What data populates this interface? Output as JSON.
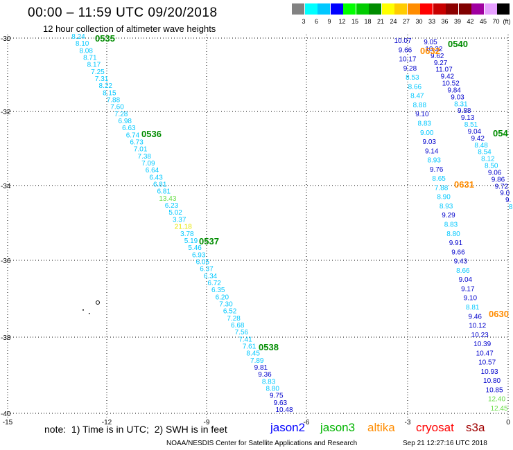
{
  "header": {
    "title": "00:00 – 11:59 UTC 09/20/2018",
    "subtitle": "12 hour collection of altimeter wave heights"
  },
  "colorbar": {
    "unit": "(ft)",
    "swatches": [
      {
        "label": "3",
        "color": "#828282"
      },
      {
        "label": "6",
        "color": "#00ffff"
      },
      {
        "label": "9",
        "color": "#00c8ff"
      },
      {
        "label": "12",
        "color": "#0000ff"
      },
      {
        "label": "15",
        "color": "#00ff00"
      },
      {
        "label": "18",
        "color": "#00cc00"
      },
      {
        "label": "21",
        "color": "#008c00"
      },
      {
        "label": "24",
        "color": "#ffff00"
      },
      {
        "label": "27",
        "color": "#ffcc00"
      },
      {
        "label": "30",
        "color": "#ff8c00"
      },
      {
        "label": "33",
        "color": "#ff0000"
      },
      {
        "label": "36",
        "color": "#c80000"
      },
      {
        "label": "39",
        "color": "#8c0000"
      },
      {
        "label": "42",
        "color": "#800000"
      },
      {
        "label": "45",
        "color": "#a000a0"
      },
      {
        "label": "70",
        "color": "#e6a0ff"
      },
      {
        "label": "",
        "color": "#000000"
      }
    ]
  },
  "map": {
    "xticks": [
      "-15",
      "-12",
      "-9",
      "-6",
      "-3",
      "0"
    ],
    "yticks": [
      "-30",
      "-32",
      "-34",
      "-36",
      "-38",
      "-40"
    ],
    "tracks": [
      {
        "satellite": "jason3",
        "points": [
          {
            "v": "8.24",
            "c": "#00c8ff"
          },
          {
            "v": "8.10",
            "c": "#00c8ff"
          },
          {
            "v": "8.08",
            "c": "#00c8ff"
          },
          {
            "v": "8.71",
            "c": "#00c8ff"
          },
          {
            "v": "8.17",
            "c": "#00c8ff"
          },
          {
            "v": "7.25",
            "c": "#00c8ff"
          },
          {
            "v": "7.31",
            "c": "#00c8ff"
          },
          {
            "v": "8.22",
            "c": "#00c8ff"
          },
          {
            "v": "8.15",
            "c": "#00c8ff"
          },
          {
            "v": "7.88",
            "c": "#00c8ff"
          },
          {
            "v": "7.60",
            "c": "#00c8ff"
          },
          {
            "v": "7.28",
            "c": "#00c8ff"
          },
          {
            "v": "6.98",
            "c": "#00c8ff"
          },
          {
            "v": "6.63",
            "c": "#00c8ff"
          },
          {
            "v": "6.74",
            "c": "#00c8ff"
          },
          {
            "v": "6.73",
            "c": "#00c8ff"
          },
          {
            "v": "7.01",
            "c": "#00c8ff"
          },
          {
            "v": "7.38",
            "c": "#00c8ff"
          },
          {
            "v": "7.09",
            "c": "#00c8ff"
          },
          {
            "v": "6.64",
            "c": "#00c8ff"
          },
          {
            "v": "6.43",
            "c": "#00c8ff"
          },
          {
            "v": "6.81",
            "c": "#00c8ff"
          },
          {
            "v": "6.81",
            "c": "#00c8ff"
          },
          {
            "v": "13.43",
            "c": "#66dd44"
          },
          {
            "v": "6.23",
            "c": "#00c8ff"
          },
          {
            "v": "5.02",
            "c": "#00c8ff"
          },
          {
            "v": "3.37",
            "c": "#00c8ff"
          },
          {
            "v": "21.18",
            "c": "#e6e600"
          },
          {
            "v": "3.78",
            "c": "#00c8ff"
          },
          {
            "v": "5.19",
            "c": "#00c8ff"
          },
          {
            "v": "5.46",
            "c": "#00c8ff"
          },
          {
            "v": "6.93",
            "c": "#00c8ff"
          },
          {
            "v": "6.05",
            "c": "#00c8ff"
          },
          {
            "v": "6.37",
            "c": "#00c8ff"
          },
          {
            "v": "6.34",
            "c": "#00c8ff"
          },
          {
            "v": "6.72",
            "c": "#00c8ff"
          },
          {
            "v": "6.35",
            "c": "#00c8ff"
          },
          {
            "v": "6.20",
            "c": "#00c8ff"
          },
          {
            "v": "7.30",
            "c": "#00c8ff"
          },
          {
            "v": "6.52",
            "c": "#00c8ff"
          },
          {
            "v": "7.28",
            "c": "#00c8ff"
          },
          {
            "v": "6.68",
            "c": "#00c8ff"
          },
          {
            "v": "7.56",
            "c": "#00c8ff"
          },
          {
            "v": "7.41",
            "c": "#00c8ff"
          },
          {
            "v": "7.61",
            "c": "#00c8ff"
          },
          {
            "v": "8.45",
            "c": "#00c8ff"
          },
          {
            "v": "7.89",
            "c": "#00c8ff"
          },
          {
            "v": "9.81",
            "c": "#0000cc"
          },
          {
            "v": "9.36",
            "c": "#0000cc"
          },
          {
            "v": "8.83",
            "c": "#00c8ff"
          },
          {
            "v": "8.80",
            "c": "#00c8ff"
          },
          {
            "v": "9.75",
            "c": "#0000cc"
          },
          {
            "v": "9.63",
            "c": "#0000cc"
          },
          {
            "v": "10.48",
            "c": "#0000cc"
          }
        ]
      },
      {
        "satellite": "jason2",
        "points": [
          {
            "v": "10.07",
            "c": "#0000cc"
          },
          {
            "v": "9.66",
            "c": "#0000cc"
          },
          {
            "v": "10.17",
            "c": "#0000cc"
          },
          {
            "v": "9.28",
            "c": "#0000cc"
          },
          {
            "v": "8.53",
            "c": "#00c8ff"
          },
          {
            "v": "8.66",
            "c": "#00c8ff"
          },
          {
            "v": "8.47",
            "c": "#00c8ff"
          },
          {
            "v": "8.88",
            "c": "#00c8ff"
          },
          {
            "v": "9.10",
            "c": "#0000cc"
          },
          {
            "v": "8.83",
            "c": "#00c8ff"
          },
          {
            "v": "9.00",
            "c": "#00c8ff"
          },
          {
            "v": "9.03",
            "c": "#0000cc"
          },
          {
            "v": "9.14",
            "c": "#0000cc"
          },
          {
            "v": "8.93",
            "c": "#00c8ff"
          },
          {
            "v": "9.76",
            "c": "#0000cc"
          },
          {
            "v": "8.65",
            "c": "#00c8ff"
          },
          {
            "v": "7.88",
            "c": "#00c8ff"
          },
          {
            "v": "8.90",
            "c": "#00c8ff"
          },
          {
            "v": "8.93",
            "c": "#00c8ff"
          },
          {
            "v": "9.29",
            "c": "#0000cc"
          },
          {
            "v": "8.83",
            "c": "#00c8ff"
          },
          {
            "v": "8.80",
            "c": "#00c8ff"
          },
          {
            "v": "9.91",
            "c": "#0000cc"
          },
          {
            "v": "9.66",
            "c": "#0000cc"
          },
          {
            "v": "9.43",
            "c": "#0000cc"
          },
          {
            "v": "8.66",
            "c": "#00c8ff"
          },
          {
            "v": "9.04",
            "c": "#0000cc"
          },
          {
            "v": "9.17",
            "c": "#0000cc"
          },
          {
            "v": "9.10",
            "c": "#0000cc"
          },
          {
            "v": "8.81",
            "c": "#00c8ff"
          },
          {
            "v": "9.46",
            "c": "#0000cc"
          },
          {
            "v": "10.12",
            "c": "#0000cc"
          },
          {
            "v": "10.23",
            "c": "#0000cc"
          },
          {
            "v": "10.39",
            "c": "#0000cc"
          },
          {
            "v": "10.47",
            "c": "#0000cc"
          },
          {
            "v": "10.57",
            "c": "#0000cc"
          },
          {
            "v": "10.93",
            "c": "#0000cc"
          },
          {
            "v": "10.80",
            "c": "#0000cc"
          },
          {
            "v": "10.85",
            "c": "#0000cc"
          },
          {
            "v": "12.40",
            "c": "#66dd44"
          },
          {
            "v": "12.45",
            "c": "#66dd44"
          }
        ]
      },
      {
        "satellite": "jason3",
        "points": [
          {
            "v": "9.05",
            "c": "#0000cc"
          },
          {
            "v": "10.32",
            "c": "#0000cc"
          },
          {
            "v": "9.62",
            "c": "#0000cc"
          },
          {
            "v": "9.27",
            "c": "#0000cc"
          },
          {
            "v": "11.07",
            "c": "#0000cc"
          },
          {
            "v": "9.42",
            "c": "#0000cc"
          },
          {
            "v": "10.52",
            "c": "#0000cc"
          },
          {
            "v": "9.84",
            "c": "#0000cc"
          },
          {
            "v": "9.03",
            "c": "#0000cc"
          },
          {
            "v": "8.31",
            "c": "#00c8ff"
          },
          {
            "v": "9.88",
            "c": "#0000cc"
          },
          {
            "v": "9.13",
            "c": "#0000cc"
          },
          {
            "v": "8.51",
            "c": "#00c8ff"
          },
          {
            "v": "9.04",
            "c": "#0000cc"
          },
          {
            "v": "9.42",
            "c": "#0000cc"
          },
          {
            "v": "8.48",
            "c": "#00c8ff"
          },
          {
            "v": "8.54",
            "c": "#00c8ff"
          },
          {
            "v": "8.12",
            "c": "#00c8ff"
          },
          {
            "v": "8.50",
            "c": "#00c8ff"
          },
          {
            "v": "9.06",
            "c": "#0000cc"
          },
          {
            "v": "9.86",
            "c": "#0000cc"
          },
          {
            "v": "9.72",
            "c": "#0000cc"
          },
          {
            "v": "9.0",
            "c": "#0000cc"
          },
          {
            "v": "9.",
            "c": "#0000cc"
          },
          {
            "v": "8.",
            "c": "#00c8ff"
          }
        ]
      }
    ],
    "time_labels": [
      {
        "text": "0535",
        "color": "#008c00"
      },
      {
        "text": "0536",
        "color": "#008c00"
      },
      {
        "text": "0537",
        "color": "#008c00"
      },
      {
        "text": "0538",
        "color": "#008c00"
      },
      {
        "text": "0540",
        "color": "#008c00"
      },
      {
        "text": "054",
        "color": "#008c00"
      },
      {
        "text": "0632",
        "color": "#ff8c00"
      },
      {
        "text": "0631",
        "color": "#ff8c00"
      },
      {
        "text": "0630",
        "color": "#ff8c00"
      }
    ]
  },
  "footer": {
    "note": "note:  1) Time is in UTC;  2) SWH is in feet",
    "legend": [
      {
        "name": "jason2",
        "color": "#0000ff"
      },
      {
        "name": "jason3",
        "color": "#00b400"
      },
      {
        "name": "altika",
        "color": "#ff8c00"
      },
      {
        "name": "cryosat",
        "color": "#ff0000"
      },
      {
        "name": "s3a",
        "color": "#a00000"
      }
    ],
    "credit": "NOAA/NESDIS Center for Satellite Applications and Research",
    "timestamp": "Sep 21 12:27:16 UTC 2018"
  }
}
